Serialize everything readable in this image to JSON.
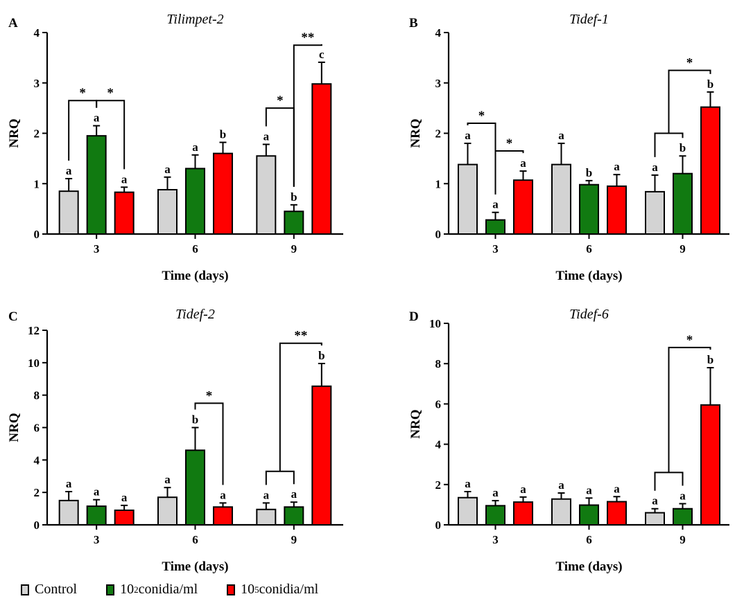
{
  "legend": {
    "items": [
      {
        "key": "control",
        "text": "Control",
        "color": "#d3d3d3"
      },
      {
        "key": "low",
        "base": "10",
        "exp": "2",
        "suffix": "conidia/ml",
        "color": "#117a11"
      },
      {
        "key": "high",
        "base": "10",
        "exp": "5",
        "suffix": "conidia/ml",
        "color": "#ff0000"
      }
    ]
  },
  "chart_data": [
    {
      "panel": "A",
      "title": "Tilimpet-2",
      "type": "bar",
      "xlabel": "Time (days)",
      "ylabel": "NRQ",
      "categories": [
        "3",
        "6",
        "9"
      ],
      "ylim": [
        0,
        4
      ],
      "yticks": [
        "0",
        "1",
        "2",
        "3",
        "4"
      ],
      "series": [
        {
          "color": "#d3d3d3",
          "values": [
            0.85,
            0.88,
            1.55
          ],
          "errors": [
            0.25,
            0.25,
            0.23
          ],
          "letters": [
            "a",
            "a",
            "a"
          ]
        },
        {
          "color": "#117a11",
          "values": [
            1.95,
            1.3,
            0.45
          ],
          "errors": [
            0.2,
            0.27,
            0.13
          ],
          "letters": [
            "a",
            "a",
            "b"
          ]
        },
        {
          "color": "#ff0000",
          "values": [
            0.83,
            1.6,
            2.98
          ],
          "errors": [
            0.1,
            0.22,
            0.43
          ],
          "letters": [
            "a",
            "b",
            "c"
          ]
        }
      ],
      "annotations": [
        {
          "label": "*",
          "from": [
            0,
            0
          ],
          "to": [
            0,
            1
          ],
          "y": 2.65
        },
        {
          "label": "*",
          "from": [
            0,
            1
          ],
          "to": [
            0,
            2
          ],
          "y": 2.65
        },
        {
          "label": "*",
          "from": [
            2,
            0
          ],
          "to": [
            2,
            1
          ],
          "y": 2.5
        },
        {
          "label": "**",
          "from": [
            2,
            1
          ],
          "to": [
            2,
            2
          ],
          "y": 3.75
        }
      ]
    },
    {
      "panel": "B",
      "title": "Tidef-1",
      "type": "bar",
      "xlabel": "Time (days)",
      "ylabel": "NRQ",
      "categories": [
        "3",
        "6",
        "9"
      ],
      "ylim": [
        0,
        4
      ],
      "yticks": [
        "0",
        "1",
        "2",
        "3",
        "4"
      ],
      "series": [
        {
          "color": "#d3d3d3",
          "values": [
            1.38,
            1.38,
            0.84
          ],
          "errors": [
            0.42,
            0.42,
            0.33
          ],
          "letters": [
            "a",
            "a",
            "a"
          ]
        },
        {
          "color": "#117a11",
          "values": [
            0.28,
            0.98,
            1.2
          ],
          "errors": [
            0.15,
            0.08,
            0.35
          ],
          "letters": [
            "a",
            "b",
            "b"
          ]
        },
        {
          "color": "#ff0000",
          "values": [
            1.07,
            0.95,
            2.52
          ],
          "errors": [
            0.18,
            0.23,
            0.3
          ],
          "letters": [
            "a",
            "a",
            "b"
          ]
        }
      ],
      "annotations": [
        {
          "label": "*",
          "from": [
            0,
            0
          ],
          "to": [
            0,
            1
          ],
          "y": 2.2
        },
        {
          "label": "*",
          "from": [
            0,
            1
          ],
          "to": [
            0,
            2
          ],
          "y": 1.65
        },
        {
          "label": "*",
          "from": [
            2,
            0
          ],
          "to": [
            2,
            1
          ],
          "y": 2.0,
          "join": 3.25,
          "to2": [
            2,
            2
          ]
        }
      ]
    },
    {
      "panel": "C",
      "title": "Tidef-2",
      "type": "bar",
      "xlabel": "Time (days)",
      "ylabel": "NRQ",
      "categories": [
        "3",
        "6",
        "9"
      ],
      "ylim": [
        0,
        12
      ],
      "yticks": [
        "0",
        "2",
        "4",
        "6",
        "8",
        "10",
        "12"
      ],
      "series": [
        {
          "color": "#d3d3d3",
          "values": [
            1.5,
            1.7,
            0.95
          ],
          "errors": [
            0.55,
            0.6,
            0.4
          ],
          "letters": [
            "a",
            "a",
            "a"
          ]
        },
        {
          "color": "#117a11",
          "values": [
            1.15,
            4.6,
            1.1
          ],
          "errors": [
            0.4,
            1.4,
            0.3
          ],
          "letters": [
            "a",
            "b",
            "a"
          ]
        },
        {
          "color": "#ff0000",
          "values": [
            0.9,
            1.1,
            8.55
          ],
          "errors": [
            0.3,
            0.25,
            1.4
          ],
          "letters": [
            "a",
            "a",
            "b"
          ]
        }
      ],
      "annotations": [
        {
          "label": "*",
          "from": [
            1,
            1
          ],
          "to": [
            1,
            2
          ],
          "y": 7.5
        },
        {
          "label": "**",
          "from": [
            2,
            0
          ],
          "to": [
            2,
            1
          ],
          "y": 3.3,
          "join": 11.2,
          "to2": [
            2,
            2
          ]
        }
      ]
    },
    {
      "panel": "D",
      "title": "Tidef-6",
      "type": "bar",
      "xlabel": "Time (days)",
      "ylabel": "NRQ",
      "categories": [
        "3",
        "6",
        "9"
      ],
      "ylim": [
        0,
        10
      ],
      "yticks": [
        "0",
        "2",
        "4",
        "6",
        "8",
        "10"
      ],
      "series": [
        {
          "color": "#d3d3d3",
          "values": [
            1.35,
            1.28,
            0.6
          ],
          "errors": [
            0.3,
            0.3,
            0.2
          ],
          "letters": [
            "a",
            "a",
            "a"
          ]
        },
        {
          "color": "#117a11",
          "values": [
            0.95,
            0.98,
            0.8
          ],
          "errors": [
            0.25,
            0.35,
            0.25
          ],
          "letters": [
            "a",
            "a",
            "a"
          ]
        },
        {
          "color": "#ff0000",
          "values": [
            1.13,
            1.15,
            5.95
          ],
          "errors": [
            0.25,
            0.25,
            1.85
          ],
          "letters": [
            "a",
            "a",
            "b"
          ]
        }
      ],
      "annotations": [
        {
          "label": "*",
          "from": [
            2,
            0
          ],
          "to": [
            2,
            1
          ],
          "y": 2.6,
          "join": 8.8,
          "to2": [
            2,
            2
          ]
        }
      ]
    }
  ]
}
